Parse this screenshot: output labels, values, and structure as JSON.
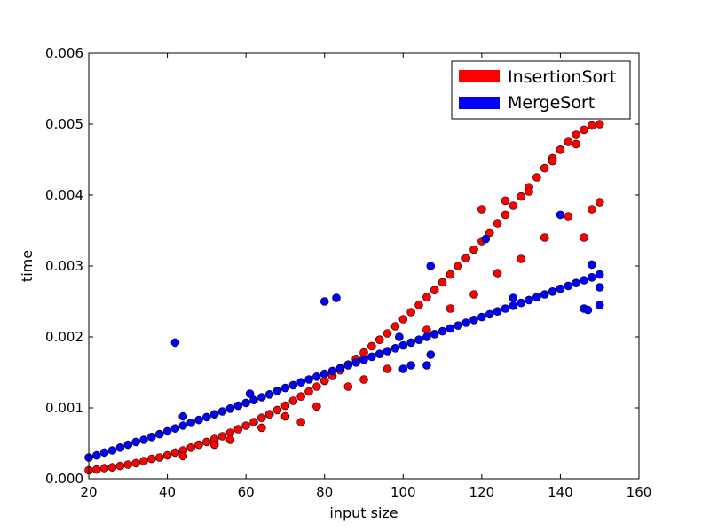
{
  "chart_data": {
    "type": "scatter",
    "title": "",
    "xlabel": "input size",
    "ylabel": "time",
    "xlim": [
      20,
      160
    ],
    "ylim": [
      0,
      0.006
    ],
    "x_ticks": [
      20,
      40,
      60,
      80,
      100,
      120,
      140,
      160
    ],
    "x_tick_labels": [
      "20",
      "40",
      "60",
      "80",
      "100",
      "120",
      "140",
      "160"
    ],
    "y_ticks": [
      0,
      0.001,
      0.002,
      0.003,
      0.004,
      0.005,
      0.006
    ],
    "y_tick_labels": [
      "0.000",
      "0.001",
      "0.002",
      "0.003",
      "0.004",
      "0.005",
      "0.006"
    ],
    "grid": false,
    "legend_position": "top-right",
    "series": [
      {
        "name": "InsertionSort",
        "color": "#ff0000",
        "points": [
          [
            20,
            0.00012
          ],
          [
            22,
            0.00013
          ],
          [
            24,
            0.00015
          ],
          [
            26,
            0.00016
          ],
          [
            28,
            0.00018
          ],
          [
            30,
            0.0002
          ],
          [
            32,
            0.00022
          ],
          [
            34,
            0.00025
          ],
          [
            36,
            0.00028
          ],
          [
            38,
            0.0003
          ],
          [
            40,
            0.00033
          ],
          [
            42,
            0.00037
          ],
          [
            44,
            0.0004
          ],
          [
            46,
            0.00044
          ],
          [
            48,
            0.00048
          ],
          [
            50,
            0.00052
          ],
          [
            52,
            0.00056
          ],
          [
            54,
            0.0006
          ],
          [
            56,
            0.00065
          ],
          [
            58,
            0.0007
          ],
          [
            60,
            0.00075
          ],
          [
            62,
            0.0008
          ],
          [
            64,
            0.00086
          ],
          [
            66,
            0.00091
          ],
          [
            68,
            0.00097
          ],
          [
            70,
            0.00103
          ],
          [
            72,
            0.0011
          ],
          [
            74,
            0.00116
          ],
          [
            76,
            0.00123
          ],
          [
            78,
            0.0013
          ],
          [
            80,
            0.00138
          ],
          [
            82,
            0.00145
          ],
          [
            84,
            0.00153
          ],
          [
            86,
            0.00161
          ],
          [
            88,
            0.00169
          ],
          [
            90,
            0.00178
          ],
          [
            92,
            0.00187
          ],
          [
            94,
            0.00196
          ],
          [
            96,
            0.00205
          ],
          [
            98,
            0.00215
          ],
          [
            100,
            0.00225
          ],
          [
            102,
            0.00235
          ],
          [
            104,
            0.00245
          ],
          [
            106,
            0.00256
          ],
          [
            108,
            0.00266
          ],
          [
            110,
            0.00277
          ],
          [
            112,
            0.00288
          ],
          [
            114,
            0.003
          ],
          [
            116,
            0.00311
          ],
          [
            118,
            0.00323
          ],
          [
            120,
            0.00335
          ],
          [
            122,
            0.00347
          ],
          [
            124,
            0.0036
          ],
          [
            126,
            0.00372
          ],
          [
            128,
            0.00385
          ],
          [
            130,
            0.00398
          ],
          [
            132,
            0.00411
          ],
          [
            134,
            0.00425
          ],
          [
            136,
            0.00438
          ],
          [
            138,
            0.00452
          ],
          [
            140,
            0.00464
          ],
          [
            142,
            0.00475
          ],
          [
            144,
            0.00485
          ],
          [
            146,
            0.00492
          ],
          [
            148,
            0.00498
          ],
          [
            150,
            0.005
          ],
          [
            44,
            0.00032
          ],
          [
            52,
            0.00048
          ],
          [
            56,
            0.00055
          ],
          [
            64,
            0.00072
          ],
          [
            70,
            0.00088
          ],
          [
            74,
            0.0008
          ],
          [
            78,
            0.00102
          ],
          [
            86,
            0.0013
          ],
          [
            90,
            0.0014
          ],
          [
            96,
            0.00155
          ],
          [
            106,
            0.0021
          ],
          [
            112,
            0.0024
          ],
          [
            118,
            0.0026
          ],
          [
            124,
            0.0029
          ],
          [
            130,
            0.0031
          ],
          [
            136,
            0.0034
          ],
          [
            142,
            0.0037
          ],
          [
            146,
            0.0034
          ],
          [
            148,
            0.0038
          ],
          [
            150,
            0.0039
          ],
          [
            120,
            0.0038
          ],
          [
            126,
            0.00392
          ],
          [
            132,
            0.00405
          ],
          [
            138,
            0.00448
          ],
          [
            144,
            0.00472
          ]
        ]
      },
      {
        "name": "MergeSort",
        "color": "#0000ff",
        "points": [
          [
            20,
            0.0003
          ],
          [
            22,
            0.00033
          ],
          [
            24,
            0.00037
          ],
          [
            26,
            0.0004
          ],
          [
            28,
            0.00044
          ],
          [
            30,
            0.00048
          ],
          [
            32,
            0.00052
          ],
          [
            34,
            0.00055
          ],
          [
            36,
            0.00059
          ],
          [
            38,
            0.00063
          ],
          [
            40,
            0.00067
          ],
          [
            42,
            0.00071
          ],
          [
            44,
            0.00075
          ],
          [
            46,
            0.00079
          ],
          [
            48,
            0.00083
          ],
          [
            50,
            0.00087
          ],
          [
            52,
            0.00091
          ],
          [
            54,
            0.00095
          ],
          [
            56,
            0.00099
          ],
          [
            58,
            0.00103
          ],
          [
            60,
            0.00107
          ],
          [
            62,
            0.00111
          ],
          [
            64,
            0.00115
          ],
          [
            66,
            0.00119
          ],
          [
            68,
            0.00124
          ],
          [
            70,
            0.00128
          ],
          [
            72,
            0.00132
          ],
          [
            74,
            0.00136
          ],
          [
            76,
            0.0014
          ],
          [
            78,
            0.00144
          ],
          [
            80,
            0.00148
          ],
          [
            82,
            0.00152
          ],
          [
            84,
            0.00156
          ],
          [
            86,
            0.0016
          ],
          [
            88,
            0.00164
          ],
          [
            90,
            0.00168
          ],
          [
            92,
            0.00172
          ],
          [
            94,
            0.00176
          ],
          [
            96,
            0.0018
          ],
          [
            98,
            0.00184
          ],
          [
            100,
            0.00188
          ],
          [
            102,
            0.00192
          ],
          [
            104,
            0.00196
          ],
          [
            106,
            0.002
          ],
          [
            108,
            0.00204
          ],
          [
            110,
            0.00208
          ],
          [
            112,
            0.00212
          ],
          [
            114,
            0.00216
          ],
          [
            116,
            0.0022
          ],
          [
            118,
            0.00224
          ],
          [
            120,
            0.00228
          ],
          [
            122,
            0.00232
          ],
          [
            124,
            0.00236
          ],
          [
            126,
            0.0024
          ],
          [
            128,
            0.00244
          ],
          [
            130,
            0.00248
          ],
          [
            132,
            0.00252
          ],
          [
            134,
            0.00256
          ],
          [
            136,
            0.0026
          ],
          [
            138,
            0.00264
          ],
          [
            140,
            0.00268
          ],
          [
            142,
            0.00272
          ],
          [
            144,
            0.00276
          ],
          [
            146,
            0.0028
          ],
          [
            148,
            0.00284
          ],
          [
            150,
            0.00288
          ],
          [
            42,
            0.00192
          ],
          [
            80,
            0.0025
          ],
          [
            83,
            0.00255
          ],
          [
            107,
            0.003
          ],
          [
            121,
            0.00338
          ],
          [
            140,
            0.00372
          ],
          [
            148,
            0.00302
          ],
          [
            150,
            0.0027
          ],
          [
            150,
            0.00245
          ],
          [
            146,
            0.0024
          ],
          [
            147,
            0.00238
          ],
          [
            100,
            0.00155
          ],
          [
            102,
            0.0016
          ],
          [
            106,
            0.0016
          ],
          [
            107,
            0.00175
          ],
          [
            99,
            0.002
          ],
          [
            128,
            0.00255
          ],
          [
            61,
            0.0012
          ],
          [
            44,
            0.00088
          ]
        ]
      }
    ]
  }
}
